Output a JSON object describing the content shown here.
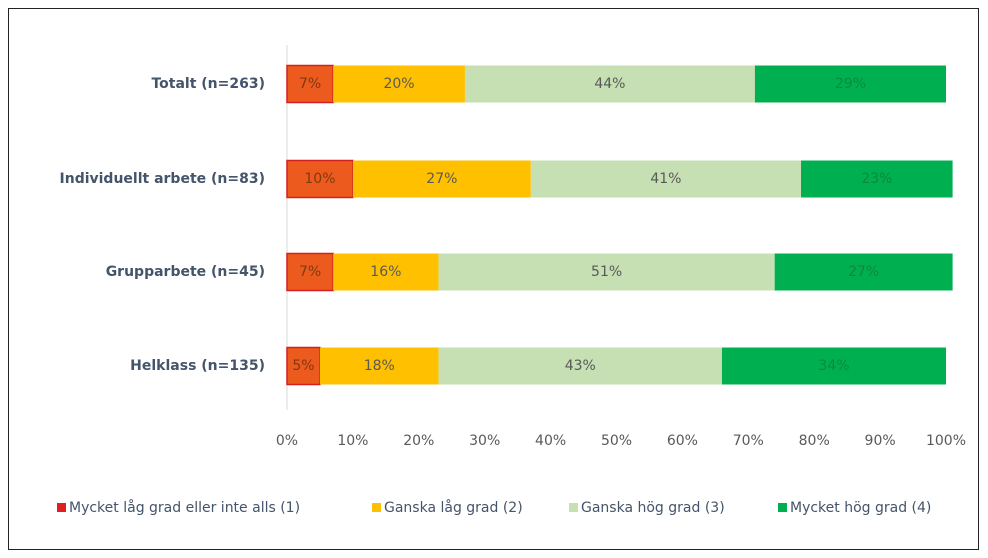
{
  "chart_data": {
    "type": "stacked_barh",
    "categories": [
      "Totalt (n=263)",
      "Individuellt arbete (n=83)",
      "Grupparbete (n=45)",
      "Helklass (n=135)"
    ],
    "series": [
      {
        "name": "Mycket låg grad eller inte alls (1)",
        "color": "#ec5a1e",
        "values": [
          7,
          10,
          7,
          5
        ],
        "value_labels": [
          "7%",
          "10%",
          "7%",
          "5%"
        ]
      },
      {
        "name": "Ganska låg grad (2)",
        "color": "#ffc000",
        "values": [
          20,
          27,
          16,
          18
        ],
        "value_labels": [
          "20%",
          "27%",
          "16%",
          "18%"
        ]
      },
      {
        "name": "Ganska hög grad (3)",
        "color": "#c6e0b4",
        "values": [
          44,
          41,
          51,
          43
        ],
        "value_labels": [
          "44%",
          "41%",
          "51%",
          "43%"
        ]
      },
      {
        "name": "Mycket hög grad (4)",
        "color": "#00b050",
        "values": [
          29,
          23,
          27,
          34
        ],
        "value_labels": [
          "29%",
          "23%",
          "27%",
          "34%"
        ]
      }
    ],
    "xlim": [
      0,
      100
    ],
    "xticks": [
      {
        "value": 0,
        "label": "0%"
      },
      {
        "value": 10,
        "label": "10%"
      },
      {
        "value": 20,
        "label": "20%"
      },
      {
        "value": 30,
        "label": "30%"
      },
      {
        "value": 40,
        "label": "40%"
      },
      {
        "value": 50,
        "label": "50%"
      },
      {
        "value": 60,
        "label": "60%"
      },
      {
        "value": 70,
        "label": "70%"
      },
      {
        "value": 80,
        "label": "80%"
      },
      {
        "value": 90,
        "label": "90%"
      },
      {
        "value": 100,
        "label": "100%"
      }
    ],
    "grid": false,
    "legend": "bottom"
  }
}
